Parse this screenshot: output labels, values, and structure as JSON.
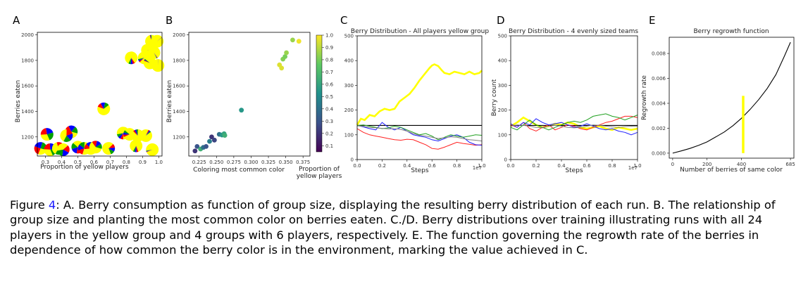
{
  "figure": {
    "panels": [
      {
        "label": "A",
        "ylabel": "Berries eaten",
        "xlabel": "Proportion of yellow players",
        "xticks": [
          "0.3",
          "0.4",
          "0.5",
          "0.6",
          "0.7",
          "0.8",
          "0.9",
          "1.0"
        ],
        "yticks": [
          "1200",
          "1400",
          "1600",
          "1800",
          "2000"
        ]
      },
      {
        "label": "B",
        "ylabel": "Berries eaten",
        "xlabel": "Coloring most common color",
        "colorbar_label_line1": "Proportion of",
        "colorbar_label_line2": "yellow players",
        "xticks": [
          "0.225",
          "0.250",
          "0.275",
          "0.300",
          "0.325",
          "0.350",
          "0.375"
        ],
        "yticks": [
          "1200",
          "1400",
          "1600",
          "1800",
          "2000"
        ],
        "cbar_ticks": [
          "0.1",
          "0.2",
          "0.3",
          "0.4",
          "0.5",
          "0.6",
          "0.7",
          "0.8",
          "0.9",
          "1.0"
        ]
      },
      {
        "label": "C",
        "title": "Berry Distribution - All players yellow group",
        "xlabel": "Steps",
        "xmult": "1e7",
        "xticks": [
          "0.0",
          "0.2",
          "0.4",
          "0.6",
          "0.8",
          "1.0"
        ],
        "yticks": [
          "0",
          "100",
          "200",
          "300",
          "400",
          "500"
        ]
      },
      {
        "label": "D",
        "title": "Berry Distribution - 4 evenly sized teams",
        "ylabel": "Berry count",
        "xlabel": "Steps",
        "xmult": "1e7",
        "xticks": [
          "0.0",
          "0.2",
          "0.4",
          "0.6",
          "0.8",
          "1.0"
        ],
        "yticks": [
          "0",
          "100",
          "200",
          "300",
          "400",
          "500"
        ]
      },
      {
        "label": "E",
        "title": "Berry regrowth function",
        "ylabel": "Regrowth rate",
        "xlabel": "Number of berries of same color",
        "xticks": [
          "0",
          "200",
          "400",
          "685"
        ],
        "yticks": [
          "0.000",
          "0.002",
          "0.004",
          "0.006",
          "0.008"
        ]
      }
    ]
  },
  "chart_data": [
    {
      "type": "scatter",
      "panel": "A",
      "xlim": [
        0.25,
        1.02
      ],
      "ylim": [
        1050,
        2020
      ],
      "marker": "pie",
      "points": [
        {
          "x": 0.955,
          "y": 1950
        },
        {
          "x": 0.99,
          "y": 1950
        },
        {
          "x": 0.93,
          "y": 1880
        },
        {
          "x": 0.97,
          "y": 1860
        },
        {
          "x": 0.83,
          "y": 1820
        },
        {
          "x": 0.91,
          "y": 1820
        },
        {
          "x": 0.945,
          "y": 1780
        },
        {
          "x": 0.995,
          "y": 1760
        },
        {
          "x": 0.66,
          "y": 1420
        },
        {
          "x": 0.46,
          "y": 1240
        },
        {
          "x": 0.31,
          "y": 1220
        },
        {
          "x": 0.43,
          "y": 1210
        },
        {
          "x": 0.78,
          "y": 1230
        },
        {
          "x": 0.82,
          "y": 1220
        },
        {
          "x": 0.87,
          "y": 1210
        },
        {
          "x": 0.92,
          "y": 1210
        },
        {
          "x": 0.27,
          "y": 1110
        },
        {
          "x": 0.33,
          "y": 1100
        },
        {
          "x": 0.38,
          "y": 1110
        },
        {
          "x": 0.41,
          "y": 1100
        },
        {
          "x": 0.5,
          "y": 1120
        },
        {
          "x": 0.54,
          "y": 1110
        },
        {
          "x": 0.58,
          "y": 1110
        },
        {
          "x": 0.61,
          "y": 1120
        },
        {
          "x": 0.69,
          "y": 1110
        },
        {
          "x": 0.86,
          "y": 1130
        },
        {
          "x": 0.96,
          "y": 1100
        }
      ]
    },
    {
      "type": "scatter",
      "panel": "B",
      "xlim": [
        0.21,
        0.385
      ],
      "ylim": [
        1050,
        2020
      ],
      "colormap": "viridis",
      "clim": [
        0.05,
        1.0
      ],
      "points": [
        {
          "x": 0.219,
          "y": 1090,
          "c": 0.2
        },
        {
          "x": 0.222,
          "y": 1125,
          "c": 0.3
        },
        {
          "x": 0.227,
          "y": 1105,
          "c": 0.65
        },
        {
          "x": 0.231,
          "y": 1118,
          "c": 0.4
        },
        {
          "x": 0.235,
          "y": 1125,
          "c": 0.3
        },
        {
          "x": 0.24,
          "y": 1165,
          "c": 0.45
        },
        {
          "x": 0.243,
          "y": 1200,
          "c": 0.2
        },
        {
          "x": 0.247,
          "y": 1175,
          "c": 0.25
        },
        {
          "x": 0.254,
          "y": 1220,
          "c": 0.4
        },
        {
          "x": 0.258,
          "y": 1215,
          "c": 0.55
        },
        {
          "x": 0.261,
          "y": 1225,
          "c": 0.6
        },
        {
          "x": 0.262,
          "y": 1212,
          "c": 0.65
        },
        {
          "x": 0.286,
          "y": 1410,
          "c": 0.55
        },
        {
          "x": 0.341,
          "y": 1765,
          "c": 0.95
        },
        {
          "x": 0.344,
          "y": 1740,
          "c": 0.95
        },
        {
          "x": 0.346,
          "y": 1810,
          "c": 0.82
        },
        {
          "x": 0.349,
          "y": 1830,
          "c": 0.8
        },
        {
          "x": 0.351,
          "y": 1860,
          "c": 0.85
        },
        {
          "x": 0.36,
          "y": 1960,
          "c": 0.85
        },
        {
          "x": 0.369,
          "y": 1950,
          "c": 0.98
        }
      ]
    },
    {
      "type": "line",
      "panel": "C",
      "xlim": [
        0,
        1.0
      ],
      "ylim": [
        0,
        500
      ],
      "series": [
        {
          "color": "#ffff00",
          "x": [
            0,
            0.03,
            0.06,
            0.1,
            0.14,
            0.18,
            0.22,
            0.26,
            0.3,
            0.34,
            0.38,
            0.42,
            0.46,
            0.5,
            0.54,
            0.58,
            0.6,
            0.62,
            0.65,
            0.68,
            0.7,
            0.74,
            0.78,
            0.82,
            0.86,
            0.9,
            0.94,
            0.98,
            1.0
          ],
          "y": [
            140,
            165,
            160,
            180,
            175,
            195,
            205,
            200,
            205,
            235,
            250,
            265,
            290,
            320,
            345,
            370,
            380,
            385,
            378,
            360,
            350,
            345,
            355,
            350,
            345,
            355,
            345,
            350,
            360
          ]
        },
        {
          "color": "#000000",
          "x": [
            0,
            1.0
          ],
          "y": [
            138,
            138
          ]
        },
        {
          "color": "#ff2020",
          "x": [
            0,
            0.05,
            0.1,
            0.15,
            0.2,
            0.25,
            0.3,
            0.35,
            0.4,
            0.45,
            0.5,
            0.55,
            0.6,
            0.65,
            0.7,
            0.75,
            0.8,
            0.85,
            0.9,
            0.95,
            1.0
          ],
          "y": [
            125,
            110,
            100,
            95,
            90,
            85,
            80,
            78,
            82,
            80,
            70,
            60,
            45,
            42,
            50,
            60,
            70,
            65,
            62,
            58,
            60
          ]
        },
        {
          "color": "#2020ff",
          "x": [
            0,
            0.05,
            0.1,
            0.15,
            0.2,
            0.25,
            0.3,
            0.35,
            0.4,
            0.45,
            0.5,
            0.55,
            0.6,
            0.65,
            0.7,
            0.75,
            0.8,
            0.85,
            0.9,
            0.95,
            1.0
          ],
          "y": [
            138,
            132,
            125,
            120,
            150,
            130,
            120,
            130,
            115,
            100,
            95,
            90,
            80,
            75,
            85,
            95,
            100,
            90,
            70,
            60,
            58
          ]
        },
        {
          "color": "#20a020",
          "x": [
            0,
            0.05,
            0.1,
            0.15,
            0.2,
            0.25,
            0.3,
            0.35,
            0.4,
            0.45,
            0.5,
            0.55,
            0.6,
            0.65,
            0.7,
            0.75,
            0.8,
            0.85,
            0.9,
            0.95,
            1.0
          ],
          "y": [
            138,
            140,
            135,
            130,
            125,
            128,
            135,
            130,
            120,
            110,
            100,
            105,
            95,
            80,
            90,
            100,
            95,
            90,
            95,
            100,
            98
          ]
        },
        {
          "color": "#808080",
          "x": [
            0,
            0.05,
            0.1,
            0.15,
            0.2,
            0.25,
            0.3,
            0.35,
            0.4,
            0.45,
            0.5,
            0.55,
            0.6,
            0.65,
            0.7,
            0.75,
            0.8,
            0.85,
            0.9,
            0.95,
            1.0
          ],
          "y": [
            136,
            134,
            130,
            128,
            126,
            124,
            125,
            122,
            115,
            105,
            98,
            95,
            90,
            85,
            88,
            92,
            90,
            85,
            80,
            78,
            75
          ]
        }
      ]
    },
    {
      "type": "line",
      "panel": "D",
      "xlim": [
        0,
        1.0
      ],
      "ylim": [
        0,
        500
      ],
      "series": [
        {
          "color": "#ffff00",
          "x": [
            0,
            0.05,
            0.1,
            0.15,
            0.2,
            0.25,
            0.3,
            0.35,
            0.4,
            0.45,
            0.5,
            0.55,
            0.6,
            0.65,
            0.7,
            0.75,
            0.8,
            0.85,
            0.9,
            0.95,
            1.0
          ],
          "y": [
            135,
            150,
            170,
            155,
            140,
            130,
            135,
            145,
            140,
            150,
            145,
            130,
            125,
            130,
            135,
            125,
            120,
            130,
            125,
            120,
            125
          ]
        },
        {
          "color": "#000000",
          "x": [
            0,
            1.0
          ],
          "y": [
            138,
            138
          ]
        },
        {
          "color": "#ff2020",
          "x": [
            0,
            0.05,
            0.1,
            0.15,
            0.2,
            0.25,
            0.3,
            0.35,
            0.4,
            0.45,
            0.5,
            0.55,
            0.6,
            0.65,
            0.7,
            0.75,
            0.8,
            0.85,
            0.9,
            0.95,
            1.0
          ],
          "y": [
            140,
            130,
            150,
            125,
            115,
            130,
            140,
            120,
            130,
            140,
            135,
            125,
            120,
            130,
            140,
            150,
            155,
            165,
            175,
            175,
            170
          ]
        },
        {
          "color": "#2020ff",
          "x": [
            0,
            0.05,
            0.1,
            0.15,
            0.2,
            0.25,
            0.3,
            0.35,
            0.4,
            0.45,
            0.5,
            0.55,
            0.6,
            0.65,
            0.7,
            0.75,
            0.8,
            0.85,
            0.9,
            0.95,
            1.0
          ],
          "y": [
            145,
            130,
            150,
            140,
            165,
            150,
            140,
            145,
            150,
            140,
            130,
            135,
            145,
            135,
            125,
            120,
            125,
            115,
            110,
            100,
            110
          ]
        },
        {
          "color": "#20a020",
          "x": [
            0,
            0.05,
            0.1,
            0.15,
            0.2,
            0.25,
            0.3,
            0.35,
            0.4,
            0.45,
            0.5,
            0.55,
            0.6,
            0.65,
            0.7,
            0.75,
            0.8,
            0.85,
            0.9,
            0.95,
            1.0
          ],
          "y": [
            130,
            120,
            140,
            160,
            140,
            130,
            120,
            130,
            140,
            150,
            155,
            150,
            160,
            175,
            180,
            185,
            175,
            170,
            160,
            170,
            180
          ]
        },
        {
          "color": "#808080",
          "x": [
            0,
            0.05,
            0.1,
            0.15,
            0.2,
            0.25,
            0.3,
            0.35,
            0.4,
            0.45,
            0.5,
            0.55,
            0.6,
            0.65,
            0.7,
            0.75,
            0.8,
            0.85,
            0.9,
            0.95,
            1.0
          ],
          "y": [
            135,
            140,
            138,
            135,
            130,
            128,
            135,
            138,
            135,
            130,
            128,
            130,
            135,
            140,
            138,
            135,
            132,
            130,
            133,
            135,
            134
          ]
        }
      ]
    },
    {
      "type": "line",
      "panel": "E",
      "xlim": [
        -20,
        705
      ],
      "ylim": [
        -0.0004,
        0.0093
      ],
      "series": [
        {
          "color": "#000000",
          "x": [
            0,
            50,
            100,
            150,
            200,
            250,
            300,
            350,
            400,
            450,
            500,
            550,
            600,
            650,
            685
          ],
          "y": [
            0.0,
            0.00018,
            0.00038,
            0.00062,
            0.0009,
            0.0013,
            0.0017,
            0.0022,
            0.0028,
            0.0035,
            0.0043,
            0.0052,
            0.0063,
            0.0078,
            0.0089
          ]
        }
      ],
      "marker_bar": {
        "color": "#ffff00",
        "x": 410,
        "y0": 0.0,
        "y1": 0.0046
      }
    }
  ],
  "caption": {
    "prefix": "Figure",
    "number": "4",
    "text": ": A. Berry consumption as function of group size, displaying the resulting berry distribution of each run. B. The relationship of group size and planting the most common color on berries eaten. C./D. Berry distributions over training illustrating runs with all 24 players in the yellow group and 4 groups with 6 players, respectively. E. The function governing the regrowth rate of the berries in dependence of how common the berry color is in the environment, marking the value achieved in C."
  }
}
